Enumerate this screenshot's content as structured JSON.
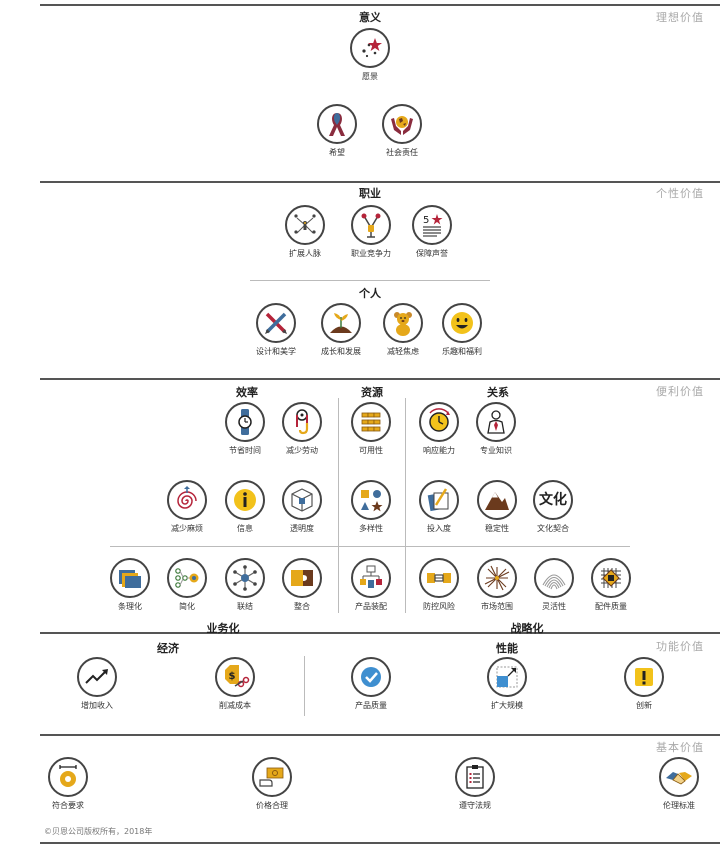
{
  "tiers": {
    "t1": "理想价值",
    "t2": "个性价值",
    "t3": "便利价值",
    "t4": "功能价值",
    "t5": "基本价值"
  },
  "sections": {
    "yiyi": "意义",
    "zhiye": "职业",
    "geren": "个人",
    "xiaolv": "效率",
    "ziyuan": "资源",
    "guanxi": "关系",
    "yewuhua": "业务化",
    "zhanluehua": "战略化",
    "jingji": "经济",
    "xingneng": "性能"
  },
  "elements": {
    "yuanjing": "愿景",
    "xiwang": "希望",
    "shehui": "社会责任",
    "kuozhan": "扩展人脉",
    "jingzheng": "职业竞争力",
    "shengyu": "保障声誉",
    "sheji": "设计和美学",
    "chengzhang": "成长和发展",
    "jiaolv": "减轻焦虑",
    "lequ": "乐趣和福利",
    "jieshengshijian": "节省时间",
    "laodong": "减少劳动",
    "keyong": "可用性",
    "xiangying": "响应能力",
    "zhuanye": "专业知识",
    "mafan": "减少麻烦",
    "xinxi": "信息",
    "touming": "透明度",
    "duoyang": "多样性",
    "tourudu": "投入度",
    "wending": "稳定性",
    "wenhua": "文化契合",
    "wenhua_glyph": "文化",
    "tiaoli": "条理化",
    "jianhua": "简化",
    "lianjie": "联结",
    "zhenghe": "整合",
    "zhuangpei": "产品装配",
    "fengxian": "防控风险",
    "shichang": "市场范围",
    "linghuo": "灵活性",
    "peijian": "配件质量",
    "shouru": "增加收入",
    "chengben": "削减成本",
    "zhiliang": "产品质量",
    "guimo": "扩大规模",
    "chuangxin": "创新",
    "fuhe": "符合要求",
    "jiage": "价格合理",
    "fagui": "遵守法规",
    "lunli": "伦理标准"
  },
  "copyright": "©贝恩公司版权所有，2018年"
}
